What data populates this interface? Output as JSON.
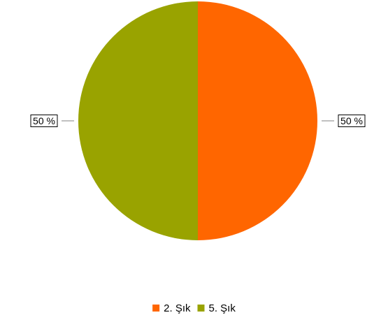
{
  "chart_data": {
    "type": "pie",
    "categories": [
      "2. Şık",
      "5. Şık"
    ],
    "values": [
      50,
      50
    ],
    "value_labels": [
      "50 %",
      "50 %"
    ],
    "colors": [
      "#ff6600",
      "#99a300"
    ],
    "title": "",
    "legend_position": "bottom",
    "start_angle": "top, clockwise"
  }
}
